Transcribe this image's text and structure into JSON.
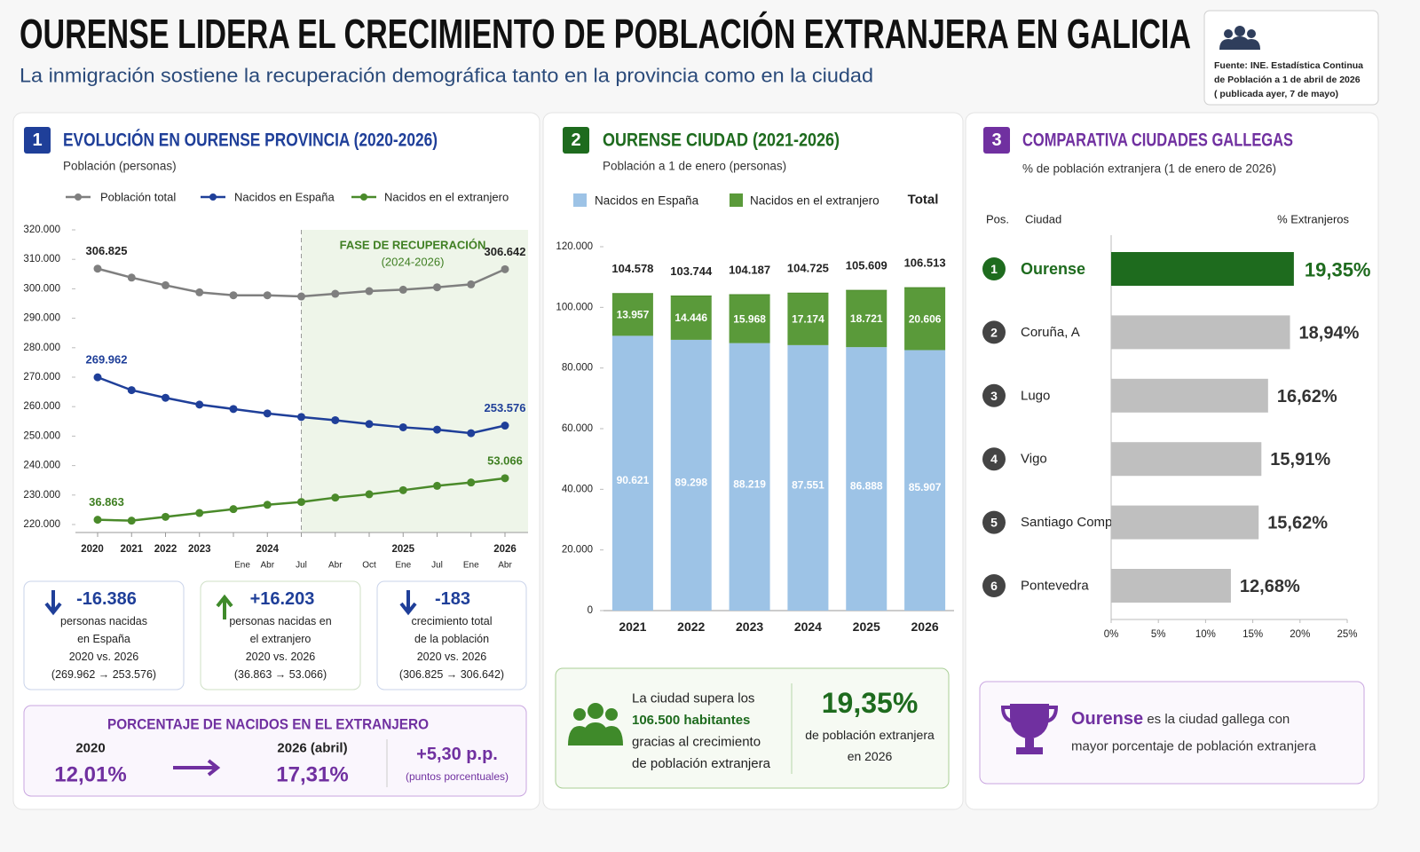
{
  "header": {
    "title": "OURENSE LIDERA EL CRECIMIENTO DE POBLACIÓN EXTRANJERA EN GALICIA",
    "subtitle": "La inmigración sostiene la recuperación demográfica tanto en la provincia como en la ciudad",
    "source": [
      "Fuente: INE. Estadística Continua",
      "de Población a 1 de abril de 2026",
      "( publicada ayer, 7 de mayo)"
    ]
  },
  "chart_data": [
    {
      "type": "line",
      "number": "1",
      "title": "EVOLUCIÓN EN OURENSE PROVINCIA (2020-2026)",
      "subtitle": "Población (personas)",
      "categories": [
        "2020",
        "2021",
        "2022",
        "2023",
        null,
        "2024",
        null,
        null,
        null,
        "2025",
        null,
        null,
        "2026"
      ],
      "category_sublabels": [
        null,
        null,
        null,
        null,
        "Ene",
        "Abr",
        "Jul",
        "Abr",
        "Oct",
        "Ene",
        "Jul",
        "Ene",
        "Abr"
      ],
      "series": [
        {
          "name": "Población total",
          "color": "#7f7f7f",
          "label_color": "#222222",
          "values": [
            306825,
            303800,
            301200,
            298800,
            297800,
            297800,
            297400,
            298300,
            299200,
            299700,
            300500,
            301500,
            306642
          ],
          "value_labels": [
            "306.825",
            null,
            null,
            null,
            null,
            null,
            null,
            null,
            null,
            null,
            null,
            null,
            "306.642"
          ]
        },
        {
          "name": "Nacidos en España",
          "color": "#1f3f99",
          "label_color": "#1f3f99",
          "values": [
            269962,
            265600,
            263000,
            260700,
            259200,
            257700,
            256500,
            255400,
            254100,
            253000,
            252200,
            251000,
            253576
          ],
          "value_labels": [
            "269.962",
            null,
            null,
            null,
            null,
            null,
            null,
            null,
            null,
            null,
            null,
            null,
            "253.576"
          ]
        },
        {
          "name": "Nacidos en el extranjero",
          "color": "#4a8a2a",
          "label_color": "#3f7f22",
          "axis": "y2",
          "values": [
            36863,
            36500,
            38000,
            39500,
            41000,
            42700,
            43800,
            45500,
            46800,
            48400,
            50100,
            51400,
            53066
          ],
          "value_labels": [
            "36.863",
            null,
            null,
            null,
            null,
            null,
            null,
            null,
            null,
            null,
            null,
            null,
            "53.066"
          ]
        }
      ],
      "ylim": [
        220000,
        320000
      ],
      "y2lim": [
        35000,
        150000
      ],
      "yticks": [
        {
          "value": 220000,
          "label": "220.000"
        },
        {
          "value": 230000,
          "label": "230.000"
        },
        {
          "value": 240000,
          "label": "240.000"
        },
        {
          "value": 250000,
          "label": "250.000"
        },
        {
          "value": 260000,
          "label": "260.000"
        },
        {
          "value": 270000,
          "label": "270.000"
        },
        {
          "value": 280000,
          "label": "280.000"
        },
        {
          "value": 290000,
          "label": "290.000"
        },
        {
          "value": 300000,
          "label": "300.000"
        },
        {
          "value": 310000,
          "label": "310.000"
        },
        {
          "value": 320000,
          "label": "320.000"
        }
      ],
      "grid": false,
      "recovery_start": 6,
      "annotation": [
        "FASE DE RECUPERACIÓN",
        "(2024-2026)"
      ]
    },
    {
      "type": "stacked_bar",
      "number": "2",
      "title": "OURENSE CIUDAD (2021-2026)",
      "subtitle": "Población a 1 de enero (personas)",
      "categories": [
        "2021",
        "2022",
        "2023",
        "2024",
        "2025",
        "2026"
      ],
      "series": [
        {
          "name": "Nacidos en España",
          "color": "#9dc3e6",
          "values": [
            90621,
            89298,
            88219,
            87551,
            86888,
            85907
          ],
          "value_labels": [
            "90.621",
            "89.298",
            "88.219",
            "87.551",
            "86.888",
            "85.907"
          ]
        },
        {
          "name": "Nacidos en el extranjero",
          "color": "#5a9a3a",
          "values": [
            13957,
            14446,
            15968,
            17174,
            18721,
            20606
          ],
          "value_labels": [
            "13.957",
            "14.446",
            "15.968",
            "17.174",
            "18.721",
            "20.606"
          ]
        }
      ],
      "totals": {
        "name": "Total",
        "values": [
          104578,
          103744,
          104187,
          104725,
          105609,
          106513
        ],
        "value_labels": [
          "104.578",
          "103.744",
          "104.187",
          "104.725",
          "105.609",
          "106.513"
        ]
      },
      "ylim": [
        0,
        120000
      ],
      "yticks": [
        0,
        {
          "value": 20000,
          "label": "20.000"
        },
        {
          "value": 40000,
          "label": "40.000"
        },
        {
          "value": 60000,
          "label": "60.000"
        },
        {
          "value": 80000,
          "label": "80.000"
        },
        {
          "value": 100000,
          "label": "100.000"
        },
        {
          "value": 120000,
          "label": "120.000"
        }
      ],
      "grid": false
    },
    {
      "type": "hbar",
      "number": "3",
      "title": "COMPARATIVA CIUDADES GALLEGAS",
      "subtitle": "% de población extranjera (1 de enero de 2026)",
      "column_headers": [
        "Pos.",
        "Ciudad",
        "% Extranjeros"
      ],
      "positions": [
        "1",
        "2",
        "3",
        "4",
        "5",
        "6"
      ],
      "categories": [
        "Ourense",
        "Coruña, A",
        "Lugo",
        "Vigo",
        "Santiago Comp.",
        "Pontevedra"
      ],
      "values": [
        19.35,
        18.94,
        16.62,
        15.91,
        15.62,
        12.68
      ],
      "value_labels": [
        "19,35%",
        "18,94%",
        "16,62%",
        "15,91%",
        "15,62%",
        "12,68%"
      ],
      "colors": [
        "#1e6b1e",
        "#bfbfbf",
        "#bfbfbf",
        "#bfbfbf",
        "#bfbfbf",
        "#bfbfbf"
      ],
      "xlim": [
        0,
        25
      ],
      "xticks": [
        {
          "value": 0,
          "label": "0%"
        },
        {
          "value": 5,
          "label": "5%"
        },
        {
          "value": 10,
          "label": "10%"
        },
        {
          "value": 15,
          "label": "15%"
        },
        {
          "value": 20,
          "label": "20%"
        },
        {
          "value": 25,
          "label": "25%"
        }
      ],
      "grid": false
    }
  ],
  "kpis": [
    {
      "value": "-16.386",
      "text": [
        "personas nacidas",
        "en España",
        "2020 vs. 2026",
        "(269.962 → 253.576)"
      ]
    },
    {
      "value": "+16.203",
      "text": [
        "personas nacidas en",
        "el extranjero",
        "2020 vs. 2026",
        "(36.863 → 53.066)"
      ]
    },
    {
      "value": "-183",
      "text": [
        "crecimiento total",
        "de la población",
        "2020 vs. 2026",
        "(306.825 → 306.642)"
      ]
    }
  ],
  "percentage_panel": {
    "title": "PORCENTAJE DE NACIDOS EN EL EXTRANJERO",
    "from_label": "2020",
    "from_value": "12,01%",
    "to_label": "2026 (abril)",
    "to_value": "17,31%",
    "change": "+5,30 p.p.",
    "change_note": "(puntos porcentuales)"
  },
  "city_panel": {
    "text": [
      "La ciudad supera los",
      "106.500 habitantes",
      "gracias al crecimiento",
      "de población extranjera"
    ],
    "value": "19,35%",
    "value_note": [
      "de población extranjera",
      "en 2026"
    ]
  },
  "highlight": {
    "bold": "Ourense",
    "rest": " es la ciudad gallega con",
    "line2": "mayor porcentaje de población extranjera"
  }
}
